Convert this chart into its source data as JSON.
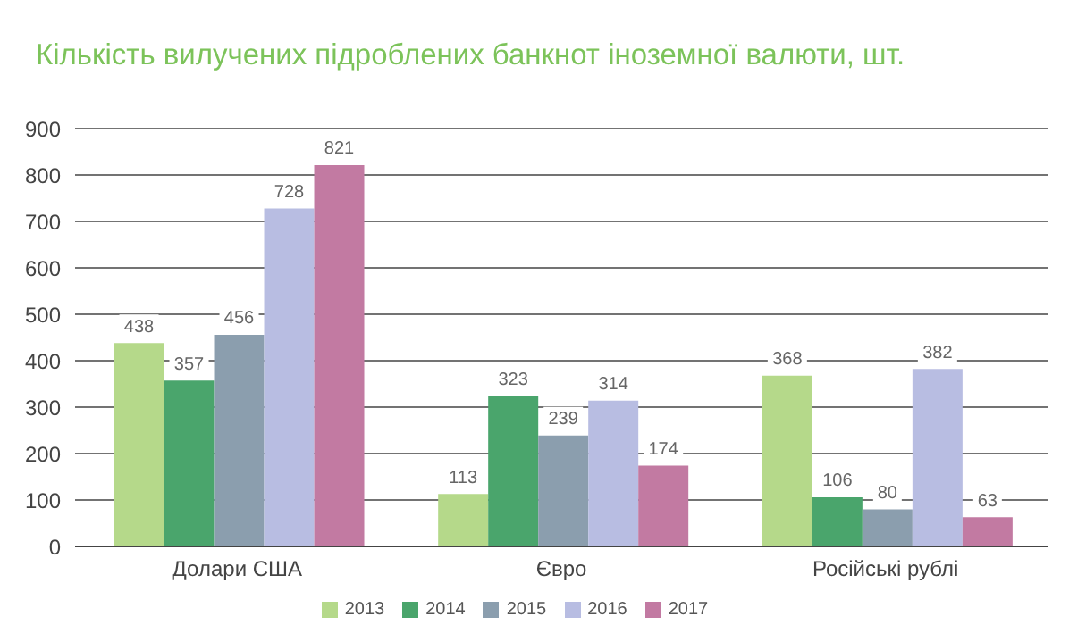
{
  "chart_data": {
    "type": "bar",
    "title": "Кількість вилучених підроблених банкнот іноземної валюти, шт.",
    "categories": [
      "Долари США",
      "Євро",
      "Російські рублі"
    ],
    "series": [
      {
        "name": "2013",
        "color": "#b5d98a",
        "values": [
          438,
          113,
          368
        ]
      },
      {
        "name": "2014",
        "color": "#4aa56c",
        "values": [
          357,
          323,
          106
        ]
      },
      {
        "name": "2015",
        "color": "#8b9eae",
        "values": [
          456,
          239,
          80
        ]
      },
      {
        "name": "2016",
        "color": "#b8bde2",
        "values": [
          728,
          314,
          382
        ]
      },
      {
        "name": "2017",
        "color": "#c27aa2",
        "values": [
          821,
          174,
          63
        ]
      }
    ],
    "ylim": [
      0,
      900
    ],
    "yticks": [
      0,
      100,
      200,
      300,
      400,
      500,
      600,
      700,
      800,
      900
    ],
    "grid": "y",
    "legend": "bottom",
    "data_labels": true
  }
}
